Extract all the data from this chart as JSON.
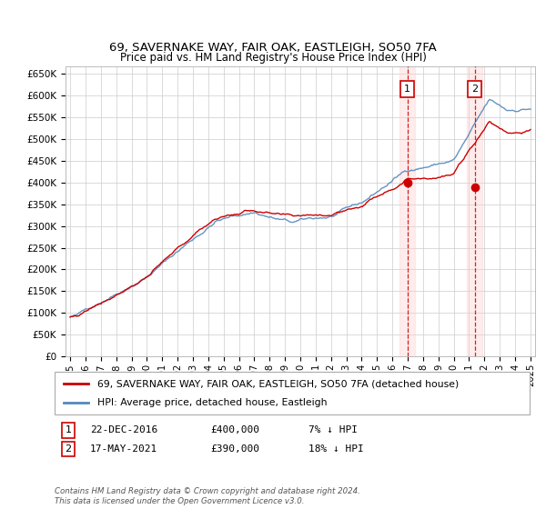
{
  "title1": "69, SAVERNAKE WAY, FAIR OAK, EASTLEIGH, SO50 7FA",
  "title2": "Price paid vs. HM Land Registry's House Price Index (HPI)",
  "ylim": [
    0,
    680000
  ],
  "yticks": [
    0,
    50000,
    100000,
    150000,
    200000,
    250000,
    300000,
    350000,
    400000,
    450000,
    500000,
    550000,
    600000,
    650000
  ],
  "ytick_labels": [
    "£0",
    "£50K",
    "£100K",
    "£150K",
    "£200K",
    "£250K",
    "£300K",
    "£350K",
    "£400K",
    "£450K",
    "£500K",
    "£550K",
    "£600K",
    "£650K"
  ],
  "sale1_date": "22-DEC-2016",
  "sale1_price": 400000,
  "sale1_note": "7% ↓ HPI",
  "sale2_date": "17-MAY-2021",
  "sale2_price": 390000,
  "sale2_note": "18% ↓ HPI",
  "legend_line1": "69, SAVERNAKE WAY, FAIR OAK, EASTLEIGH, SO50 7FA (detached house)",
  "legend_line2": "HPI: Average price, detached house, Eastleigh",
  "footer": "Contains HM Land Registry data © Crown copyright and database right 2024.\nThis data is licensed under the Open Government Licence v3.0.",
  "hpi_color": "#5588bb",
  "price_color": "#cc0000",
  "sale1_x": 2016.97,
  "sale2_x": 2021.37,
  "background_color": "#ffffff",
  "grid_color": "#cccccc",
  "plot_bg": "#ffffff"
}
